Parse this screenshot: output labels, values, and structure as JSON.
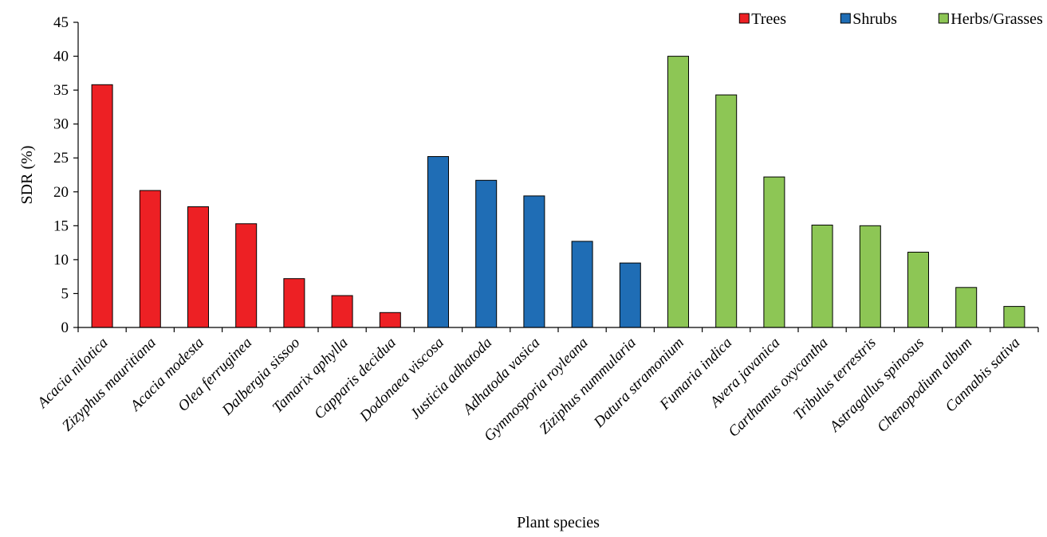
{
  "chart_data": {
    "type": "bar",
    "title": "",
    "xlabel": "Plant species",
    "ylabel": "SDR (%)",
    "ylim": [
      0,
      45
    ],
    "yticks": [
      0,
      5,
      10,
      15,
      20,
      25,
      30,
      35,
      40,
      45
    ],
    "grid": false,
    "legend_position": "top-right",
    "categories": [
      "Acacia nilotica",
      "Zizyphus mauritiana",
      "Acacia modesta",
      "Olea ferruginea",
      "Dalbergia sissoo",
      "Tamarix aphylla",
      "Capparis decidua",
      "Dodonaea viscosa",
      "Justicia adhatoda",
      "Adhatoda vasica",
      "Gymnosporia royleana",
      "Ziziphus nummularia",
      "Datura stramonium",
      "Fumaria indica",
      "Avera javanica",
      "Carthamus oxycantha",
      "Tribulus terrestris",
      "Astragallus spinosus",
      "Chenopodium album",
      "Cannabis sativa"
    ],
    "values": [
      35.8,
      20.2,
      17.8,
      15.3,
      7.2,
      4.7,
      2.2,
      25.2,
      21.7,
      19.4,
      12.7,
      9.5,
      40.0,
      34.3,
      22.2,
      15.1,
      15.0,
      11.1,
      5.9,
      3.1
    ],
    "groups": [
      "Trees",
      "Trees",
      "Trees",
      "Trees",
      "Trees",
      "Trees",
      "Trees",
      "Shrubs",
      "Shrubs",
      "Shrubs",
      "Shrubs",
      "Shrubs",
      "Herbs/Grasses",
      "Herbs/Grasses",
      "Herbs/Grasses",
      "Herbs/Grasses",
      "Herbs/Grasses",
      "Herbs/Grasses",
      "Herbs/Grasses",
      "Herbs/Grasses"
    ],
    "legend": [
      {
        "name": "Trees",
        "color": "#ed2024"
      },
      {
        "name": "Shrubs",
        "color": "#1f6db5"
      },
      {
        "name": "Herbs/Grasses",
        "color": "#8dc655"
      }
    ]
  }
}
